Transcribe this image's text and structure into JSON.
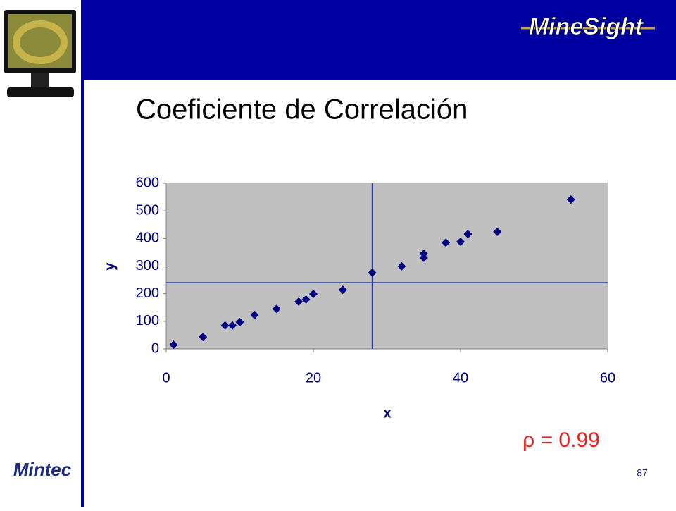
{
  "header": {
    "logo": "MineSight"
  },
  "footer": {
    "logo": "Mintec",
    "page": "87"
  },
  "chart_data": {
    "type": "scatter",
    "title": "Coeficiente de Correlación",
    "xlabel": "x",
    "ylabel": "y",
    "x": [
      1,
      5,
      8,
      9,
      10,
      12,
      15,
      18,
      19,
      20,
      24,
      28,
      32,
      35,
      35,
      38,
      40,
      41,
      45,
      55
    ],
    "y": [
      15,
      43,
      85,
      85,
      97,
      123,
      145,
      171,
      179,
      199,
      214,
      276,
      299,
      345,
      330,
      385,
      388,
      416,
      424,
      541
    ],
    "color": "#000080",
    "xlim": [
      0,
      60
    ],
    "ylim": [
      0,
      600
    ],
    "xticks": [
      0,
      20,
      40,
      60
    ],
    "yticks": [
      0,
      100,
      200,
      300,
      400,
      500,
      600
    ],
    "reference_lines": {
      "x": 28,
      "y": 240,
      "color": "#2b3aa8"
    },
    "annotation": "ρ = 0.99",
    "annotation_color": "#e8231f"
  }
}
